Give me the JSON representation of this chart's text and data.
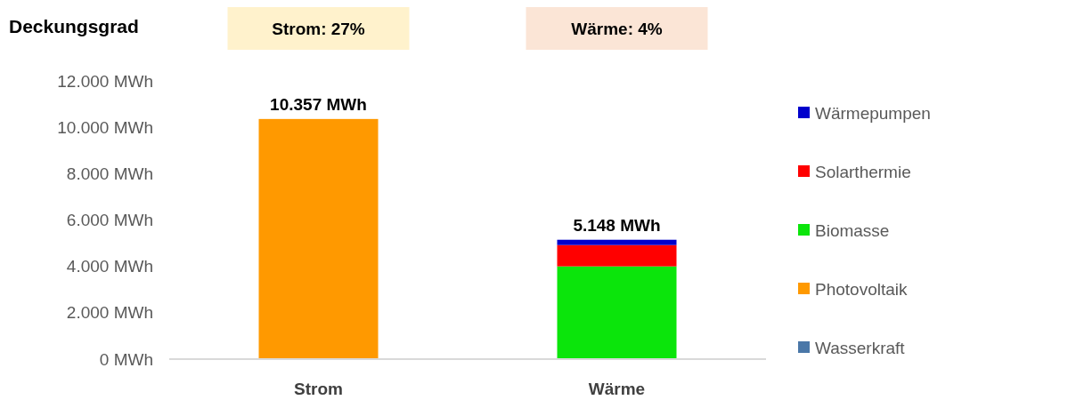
{
  "chart_data": {
    "type": "bar",
    "title": "Deckungsgrad",
    "stacked": true,
    "categories": [
      "Strom",
      "Wärme"
    ],
    "series": [
      {
        "name": "Wasserkraft",
        "color": "#4a77a8",
        "values": [
          0,
          0
        ]
      },
      {
        "name": "Photovoltaik",
        "color": "#ff9900",
        "values": [
          10357,
          0
        ]
      },
      {
        "name": "Biomasse",
        "color": "#0be50b",
        "values": [
          0,
          4000
        ]
      },
      {
        "name": "Solarthermie",
        "color": "#ff0000",
        "values": [
          0,
          920
        ]
      },
      {
        "name": "Wärmepumpen",
        "color": "#0000cc",
        "values": [
          0,
          228
        ]
      }
    ],
    "totals": [
      "10.357 MWh",
      "5.148 MWh"
    ],
    "annotations": [
      "Strom: 27%",
      "Wärme: 4%"
    ],
    "ylim": [
      0,
      12000
    ],
    "yticks": [
      {
        "value": 0,
        "label": "0 MWh"
      },
      {
        "value": 2000,
        "label": "2.000 MWh"
      },
      {
        "value": 4000,
        "label": "4.000 MWh"
      },
      {
        "value": 6000,
        "label": "6.000 MWh"
      },
      {
        "value": 8000,
        "label": "8.000 MWh"
      },
      {
        "value": 10000,
        "label": "10.000 MWh"
      },
      {
        "value": 12000,
        "label": "12.000 MWh"
      }
    ],
    "grid": false,
    "legend": "right"
  }
}
